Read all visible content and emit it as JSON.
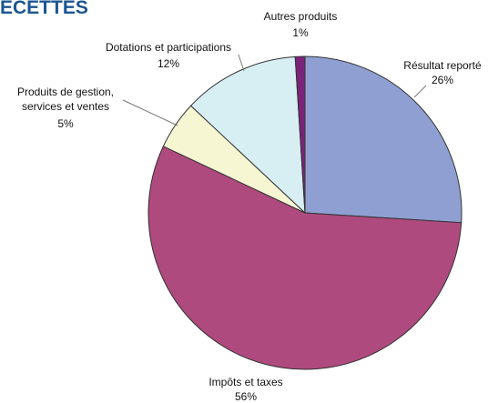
{
  "chart_data": {
    "type": "pie",
    "title": "ECETTES",
    "categories": [
      "Résultat reporté",
      "Impôts et taxes",
      "Produits de gestion,\nservices et ventes",
      "Dotations et participations",
      "Autres produits"
    ],
    "values": [
      26,
      56,
      5,
      12,
      1
    ],
    "value_labels": [
      "26%",
      "56%",
      "5%",
      "12%",
      "1%"
    ],
    "colors": [
      "#8f9fd1",
      "#ae4a7e",
      "#f7f6d3",
      "#d7eff3",
      "#7a2479"
    ]
  }
}
